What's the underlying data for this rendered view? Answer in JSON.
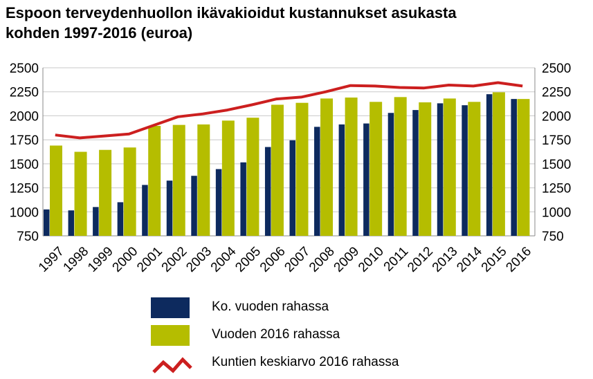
{
  "chart_data": {
    "type": "bar",
    "title": [
      "Espoon terveydenhuollon ikävakioidut kustannukset asukasta",
      "kohden 1997-2016 (euroa)"
    ],
    "categories": [
      "1997",
      "1998",
      "1999",
      "2000",
      "2001",
      "2002",
      "2003",
      "2004",
      "2005",
      "2006",
      "2007",
      "2008",
      "2009",
      "2010",
      "2011",
      "2012",
      "2013",
      "2014",
      "2015",
      "2016"
    ],
    "ylim": [
      750,
      2500
    ],
    "yticks": [
      "750",
      "1000",
      "1250",
      "1500",
      "1750",
      "2000",
      "2250",
      "2500"
    ],
    "grid": true,
    "secondary_axis": true,
    "series": [
      {
        "name": "Ko. vuoden rahassa",
        "type": "bar",
        "color": "#0d2a5e",
        "values": [
          1025,
          1015,
          1050,
          1100,
          1280,
          1325,
          1375,
          1445,
          1515,
          1675,
          1745,
          1885,
          1910,
          1920,
          2030,
          2060,
          2130,
          2110,
          2225,
          2175
        ]
      },
      {
        "name": "Vuoden 2016 rahassa",
        "type": "bar",
        "color": "#b5bd00",
        "values": [
          1690,
          1625,
          1645,
          1670,
          1895,
          1905,
          1910,
          1950,
          1980,
          2115,
          2135,
          2180,
          2190,
          2145,
          2195,
          2140,
          2180,
          2145,
          2245,
          2175
        ]
      },
      {
        "name": "Kuntien keskiarvo 2016 rahassa",
        "type": "line",
        "color": "#cc1f1f",
        "values": [
          1800,
          1770,
          1790,
          1810,
          1900,
          1990,
          2020,
          2060,
          2115,
          2175,
          2195,
          2250,
          2315,
          2310,
          2295,
          2290,
          2320,
          2310,
          2345,
          2310
        ]
      }
    ],
    "legend_position": "bottom"
  }
}
